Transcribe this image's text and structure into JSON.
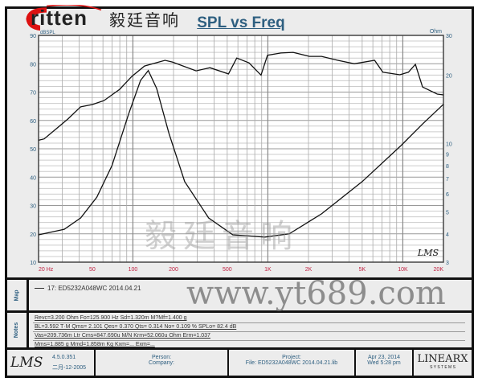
{
  "header": {
    "brand": "ritten",
    "brand_cn": "毅廷音响",
    "watermark": "毅廷音响",
    "watermark_url": "www.yt689.com"
  },
  "chart_data": {
    "type": "line",
    "title": "SPL vs Freq",
    "ylabel": "dBSPL",
    "y2label": "Ohm",
    "xscale": "log",
    "xlim": [
      20,
      20000
    ],
    "ylim": [
      10,
      90
    ],
    "y2lim": [
      3,
      30
    ],
    "y2scale": "log",
    "grid": true,
    "x_ticks": [
      "20 Hz",
      "50",
      "100",
      "200",
      "500",
      "1K",
      "2K",
      "5K",
      "10K",
      "20K"
    ],
    "x_tick_values": [
      20,
      50,
      100,
      200,
      500,
      1000,
      2000,
      5000,
      10000,
      20000
    ],
    "y_ticks": [
      10,
      20,
      30,
      40,
      50,
      60,
      70,
      80,
      90
    ],
    "y2_ticks": [
      3,
      4,
      5,
      6,
      7,
      8,
      9,
      10,
      20,
      30
    ],
    "series": [
      {
        "axis": "left",
        "x": [
          20,
          22,
          27,
          33,
          41,
          50,
          61,
          80,
          98,
          122,
          173,
          196,
          294,
          372,
          511,
          588,
          725,
          890,
          994,
          1250,
          1540,
          2030,
          2500,
          3300,
          4370,
          6180,
          7120,
          9500,
          11000,
          12400,
          14000,
          18000,
          20000
        ],
        "values": [
          53,
          53.5,
          57,
          60.5,
          64.8,
          65.6,
          67,
          71,
          75.5,
          79.2,
          81.2,
          80.6,
          77.5,
          78.6,
          76.4,
          82,
          80.3,
          76,
          83,
          83.8,
          84,
          82.6,
          82.6,
          81.2,
          80,
          81.2,
          77,
          76.1,
          77,
          79.8,
          71.8,
          69.3,
          69
        ]
      },
      {
        "axis": "right",
        "x": [
          20,
          31,
          41,
          54,
          70,
          93,
          114,
          130,
          150,
          185,
          242,
          364,
          550,
          950,
          1440,
          2500,
          5000,
          9700,
          14000,
          20000
        ],
        "values": [
          3.96,
          4.19,
          4.7,
          5.8,
          8.0,
          13.5,
          19.0,
          21.0,
          17.5,
          11.1,
          6.8,
          4.7,
          3.96,
          3.87,
          4.0,
          4.9,
          6.8,
          9.8,
          12.2,
          14.9
        ]
      }
    ],
    "annotation": "LMS"
  },
  "map": {
    "label": "Map",
    "entry": "17: ED5232A048WC    2014.04.21"
  },
  "notes": {
    "label": "Notes",
    "lines": [
      "Revc=3.200 Ohm  Fo=125.900 Hz  Sd=1.320m M?Mf=1.400 g",
      "BL=3.592 T·M  Qms= 2.101  Qes= 0.370  Qts= 0.314  No= 0.109 %  SPLo= 82.4 dB",
      "Vas=209.736m Ltr  Cms=847.690u M/N  Krm=52.060u Ohm  Erm=1.037",
      "Mms=1.885 g  Mmd=1.858m Kg  Kxm=... Exm=..."
    ]
  },
  "footer": {
    "lms": "LMS",
    "version": "4.5.0.351",
    "date_built": "二月-12-2005",
    "person": "Person:",
    "company": "Company:",
    "project": "Project:",
    "file": "File: ED5232A048WC 2014.04.21.lib",
    "date": "Apr 23, 2014",
    "time": "Wed  5:28 pm",
    "vendor": "LINEARX",
    "vendor_sub": "S Y S T E M S"
  }
}
